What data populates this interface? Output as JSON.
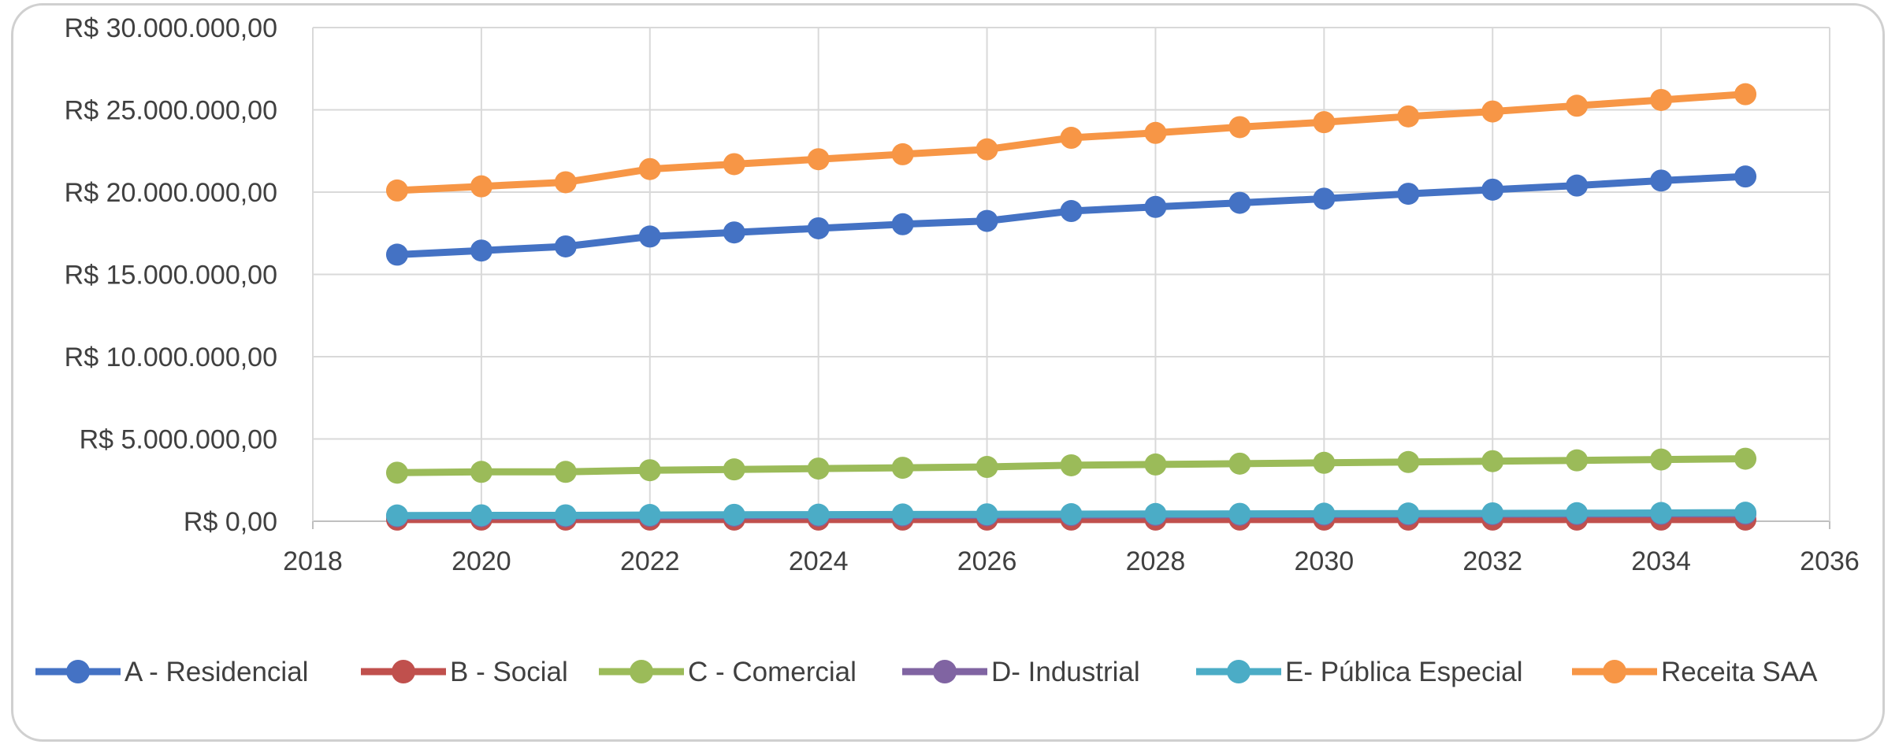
{
  "chart_data": {
    "type": "line",
    "title": "",
    "xlabel": "",
    "ylabel": "",
    "xlim": [
      2018,
      2036
    ],
    "ylim": [
      0,
      30000000
    ],
    "x_ticks": [
      "2018",
      "2020",
      "2022",
      "2024",
      "2026",
      "2028",
      "2030",
      "2032",
      "2034",
      "2036"
    ],
    "y_ticks": [
      "R$ 0,00",
      "R$ 5.000.000,00",
      "R$ 10.000.000,00",
      "R$ 15.000.000,00",
      "R$ 20.000.000,00",
      "R$ 25.000.000,00",
      "R$ 30.000.000,00"
    ],
    "grid": true,
    "legend_position": "bottom",
    "x": [
      2019,
      2020,
      2021,
      2022,
      2023,
      2024,
      2025,
      2026,
      2027,
      2028,
      2029,
      2030,
      2031,
      2032,
      2033,
      2034,
      2035
    ],
    "series": [
      {
        "name": "A - Residencial",
        "color": "#4472C4",
        "values": [
          16200000,
          16450000,
          16700000,
          17300000,
          17550000,
          17800000,
          18050000,
          18250000,
          18850000,
          19100000,
          19350000,
          19600000,
          19900000,
          20150000,
          20400000,
          20700000,
          20950000
        ]
      },
      {
        "name": "B - Social",
        "color": "#C0504D",
        "values": [
          100000,
          100000,
          100000,
          100000,
          100000,
          100000,
          100000,
          100000,
          100000,
          100000,
          100000,
          100000,
          100000,
          100000,
          100000,
          100000,
          100000
        ]
      },
      {
        "name": "C - Comercial",
        "color": "#9BBB59",
        "values": [
          2950000,
          3000000,
          3000000,
          3100000,
          3150000,
          3200000,
          3250000,
          3300000,
          3400000,
          3450000,
          3500000,
          3550000,
          3600000,
          3650000,
          3700000,
          3750000,
          3800000
        ]
      },
      {
        "name": "D- Industrial",
        "color": "#8064A2",
        "values": [
          300000,
          300000,
          300000,
          320000,
          330000,
          340000,
          350000,
          360000,
          370000,
          380000,
          390000,
          400000,
          410000,
          420000,
          430000,
          440000,
          450000
        ]
      },
      {
        "name": "E- Pública Especial",
        "color": "#4BACC6",
        "values": [
          350000,
          360000,
          360000,
          380000,
          390000,
          400000,
          410000,
          420000,
          430000,
          440000,
          450000,
          460000,
          470000,
          480000,
          490000,
          500000,
          520000
        ]
      },
      {
        "name": "Receita SAA",
        "color": "#F79646",
        "values": [
          20100000,
          20350000,
          20600000,
          21400000,
          21700000,
          22000000,
          22300000,
          22600000,
          23300000,
          23600000,
          23950000,
          24250000,
          24600000,
          24900000,
          25250000,
          25600000,
          25950000
        ]
      }
    ]
  }
}
